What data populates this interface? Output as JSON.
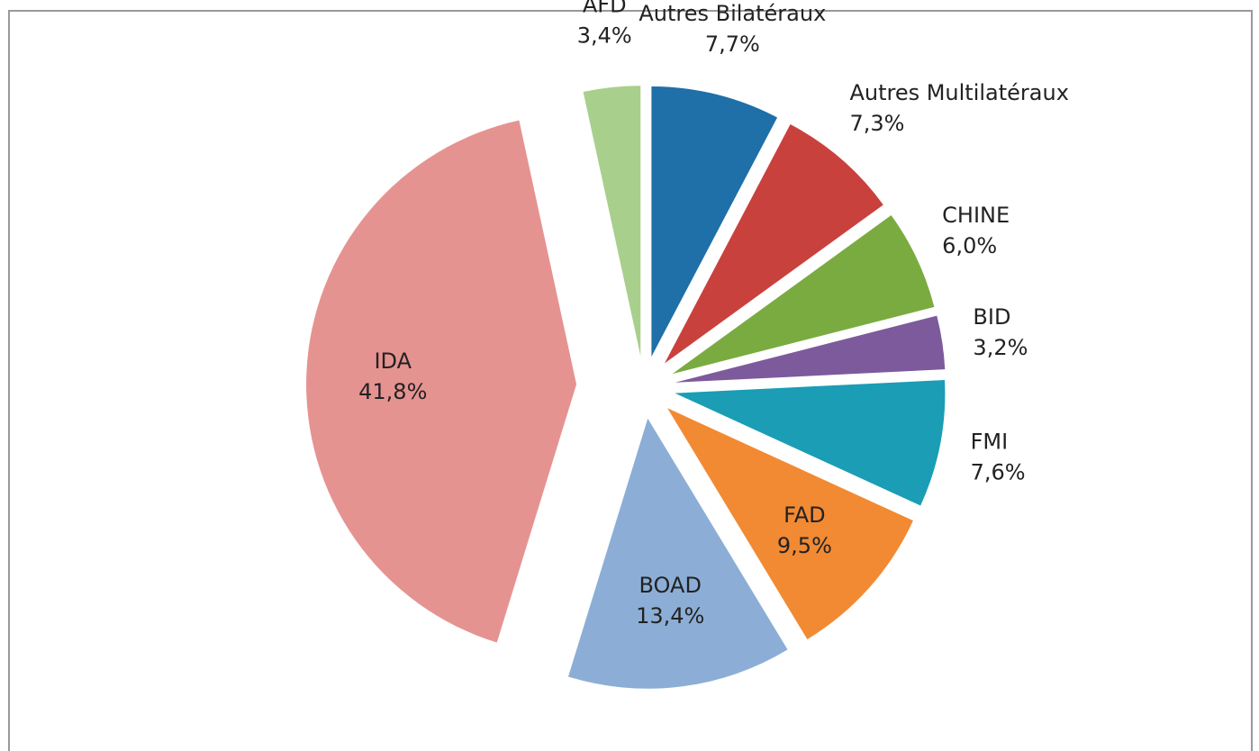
{
  "chart_data": {
    "type": "pie",
    "categories": [
      "Autres Bilatéraux",
      "Autres Multilatéraux",
      "CHINE",
      "BID",
      "FMI",
      "FAD",
      "BOAD",
      "IDA",
      "AFD"
    ],
    "values": [
      7.7,
      7.3,
      6.0,
      3.2,
      7.6,
      9.5,
      13.4,
      41.8,
      3.4
    ],
    "value_labels": [
      "7,7%",
      "7,3%",
      "6,0%",
      "3,2%",
      "7,6%",
      "9,5%",
      "13,4%",
      "41,8%",
      "3,4%"
    ],
    "colors": [
      "#1f6fa8",
      "#c9413d",
      "#7aab41",
      "#7d5a9c",
      "#1a9db5",
      "#f28a33",
      "#8caed6",
      "#e59391",
      "#a9cf8d"
    ]
  }
}
